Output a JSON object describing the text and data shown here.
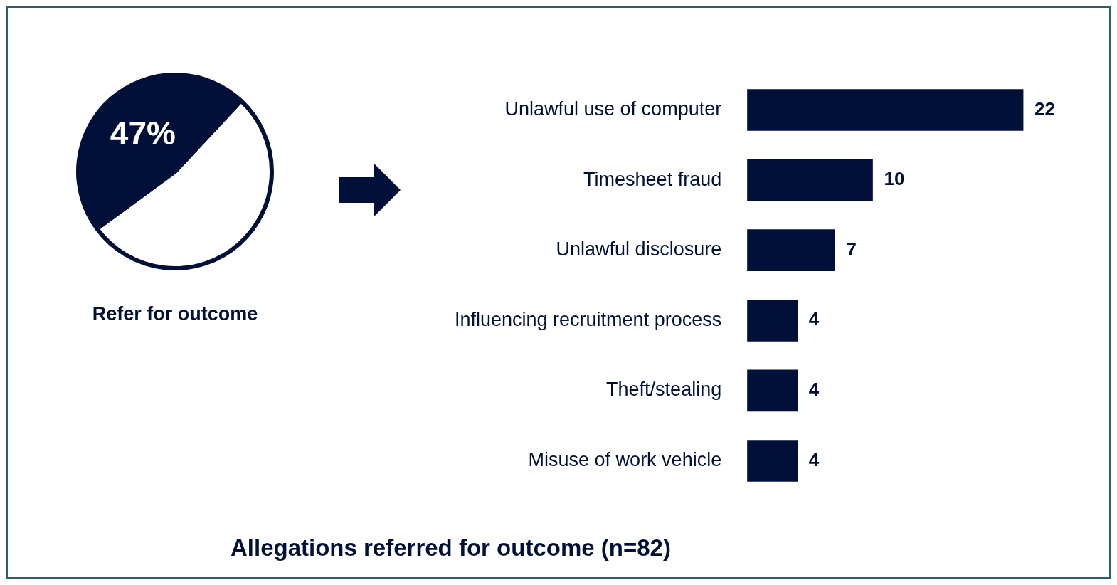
{
  "chart_data": [
    {
      "type": "pie",
      "title": "Refer for outcome",
      "categories": [
        null,
        null
      ],
      "values": [
        53,
        47
      ],
      "colors": [
        "#ffffff",
        "#001038"
      ],
      "value_labels": [
        null,
        "47%"
      ]
    },
    {
      "type": "bar",
      "orientation": "horizontal",
      "title": "Allegations referred for outcome (n=82)",
      "categories": [
        "Unlawful use of computer",
        "Timesheet fraud",
        "Unlawful disclosure",
        "Influencing recruitment process",
        "Theft/stealing",
        "Misuse of work vehicle"
      ],
      "values": [
        22,
        10,
        7,
        4,
        4,
        4
      ],
      "color": "#001038",
      "data_labels": true
    }
  ]
}
